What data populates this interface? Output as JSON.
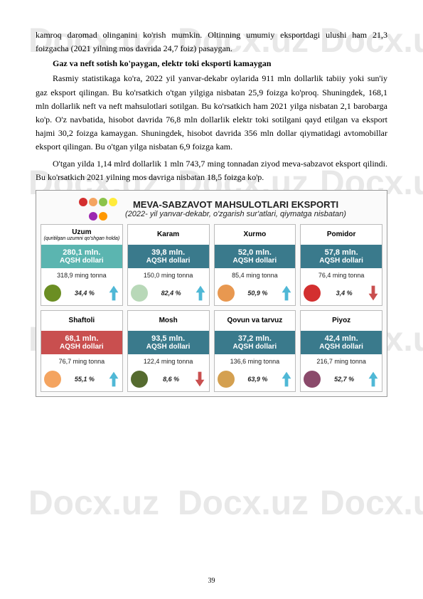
{
  "watermark": "Docx.uz",
  "paragraphs": {
    "p1": "kamroq daromad olinganini ko'rish mumkin. Oltinning umumiy eksportdagi ulushi ham 21,3 foizgacha (2021 yilning mos davrida 24,7 foiz) pasaygan.",
    "heading": "Gaz va neft sotish ko'paygan, elektr toki eksporti kamaygan",
    "p2": "Rasmiy statistikaga ko'ra, 2022 yil yanvar-dekabr oylarida 911 mln dollarlik tabiiy yoki sun'iy gaz eksport qilingan. Bu ko'rsatkich o'tgan yilgiga nisbatan 25,9 foizga ko'proq. Shuningdek, 168,1 mln dollarlik neft va neft mahsulotlari sotilgan. Bu ko'rsatkich ham 2021 yilga nisbatan 2,1 barobarga ko'p. O'z navbatida, hisobot davrida 76,8 mln dollarlik elektr toki sotilgani qayd etilgan va eksport hajmi 30,2 foizga kamaygan. Shuningdek, hisobot davrida 356 mln dollar qiymatidagi avtomobillar eksport qilingan. Bu o'tgan yilga nisbatan 6,9 foizga kam.",
    "p3": "O'tgan yilda 1,14 mlrd dollarlik 1 mln 743,7 ming tonnadan ziyod meva-sabzavot eksport qilindi. Bu ko'rsatkich 2021 yilning mos davriga nisbatan 18,5 foizga ko'p."
  },
  "chart": {
    "title": "MEVA-SABZAVOT MAHSULOTLARI EKSPORTI",
    "subtitle": "(2022- yil yanvar-dekabr, o'zgarish sur'atlari, qiymatga nisbatan)",
    "unit_label": "AQSH dollari",
    "items": [
      {
        "name": "Uzum",
        "sub": "(quritilgan uzumni qo'shgan holda)",
        "amount": "280,1 mln.",
        "tonnage": "318,9 ming tonna",
        "percent": "34,4 %",
        "color": "#5bb5b0",
        "icon_color": "#6b8e23",
        "direction": "up"
      },
      {
        "name": "Karam",
        "sub": "",
        "amount": "39,8 mln.",
        "tonnage": "150,0 ming tonna",
        "percent": "82,4 %",
        "color": "#3a7a8c",
        "icon_color": "#b8d8b8",
        "direction": "up"
      },
      {
        "name": "Xurmo",
        "sub": "",
        "amount": "52,0 mln.",
        "tonnage": "85,4 ming tonna",
        "percent": "50,9 %",
        "color": "#3a7a8c",
        "icon_color": "#e89850",
        "direction": "up"
      },
      {
        "name": "Pomidor",
        "sub": "",
        "amount": "57,8 mln.",
        "tonnage": "76,4 ming tonna",
        "percent": "3,4 %",
        "color": "#3a7a8c",
        "icon_color": "#d32f2f",
        "direction": "down"
      },
      {
        "name": "Shaftoli",
        "sub": "",
        "amount": "68,1 mln.",
        "tonnage": "76,7 ming tonna",
        "percent": "55,1 %",
        "color": "#c94f4f",
        "icon_color": "#f4a460",
        "direction": "up"
      },
      {
        "name": "Mosh",
        "sub": "",
        "amount": "93,5 mln.",
        "tonnage": "122,4 ming tonna",
        "percent": "8,6 %",
        "color": "#3a7a8c",
        "icon_color": "#556b2f",
        "direction": "down"
      },
      {
        "name": "Qovun va tarvuz",
        "sub": "",
        "amount": "37,2 mln.",
        "tonnage": "136,6 ming tonna",
        "percent": "63,9 %",
        "color": "#3a7a8c",
        "icon_color": "#d4a050",
        "direction": "up"
      },
      {
        "name": "Piyoz",
        "sub": "",
        "amount": "42,4 mln.",
        "tonnage": "216,7 ming tonna",
        "percent": "52,7 %",
        "color": "#3a7a8c",
        "icon_color": "#8b4a6b",
        "direction": "up"
      }
    ]
  },
  "colors": {
    "arrow_up": "#4fb8d6",
    "arrow_down": "#c94f4f"
  },
  "page_number": "39"
}
